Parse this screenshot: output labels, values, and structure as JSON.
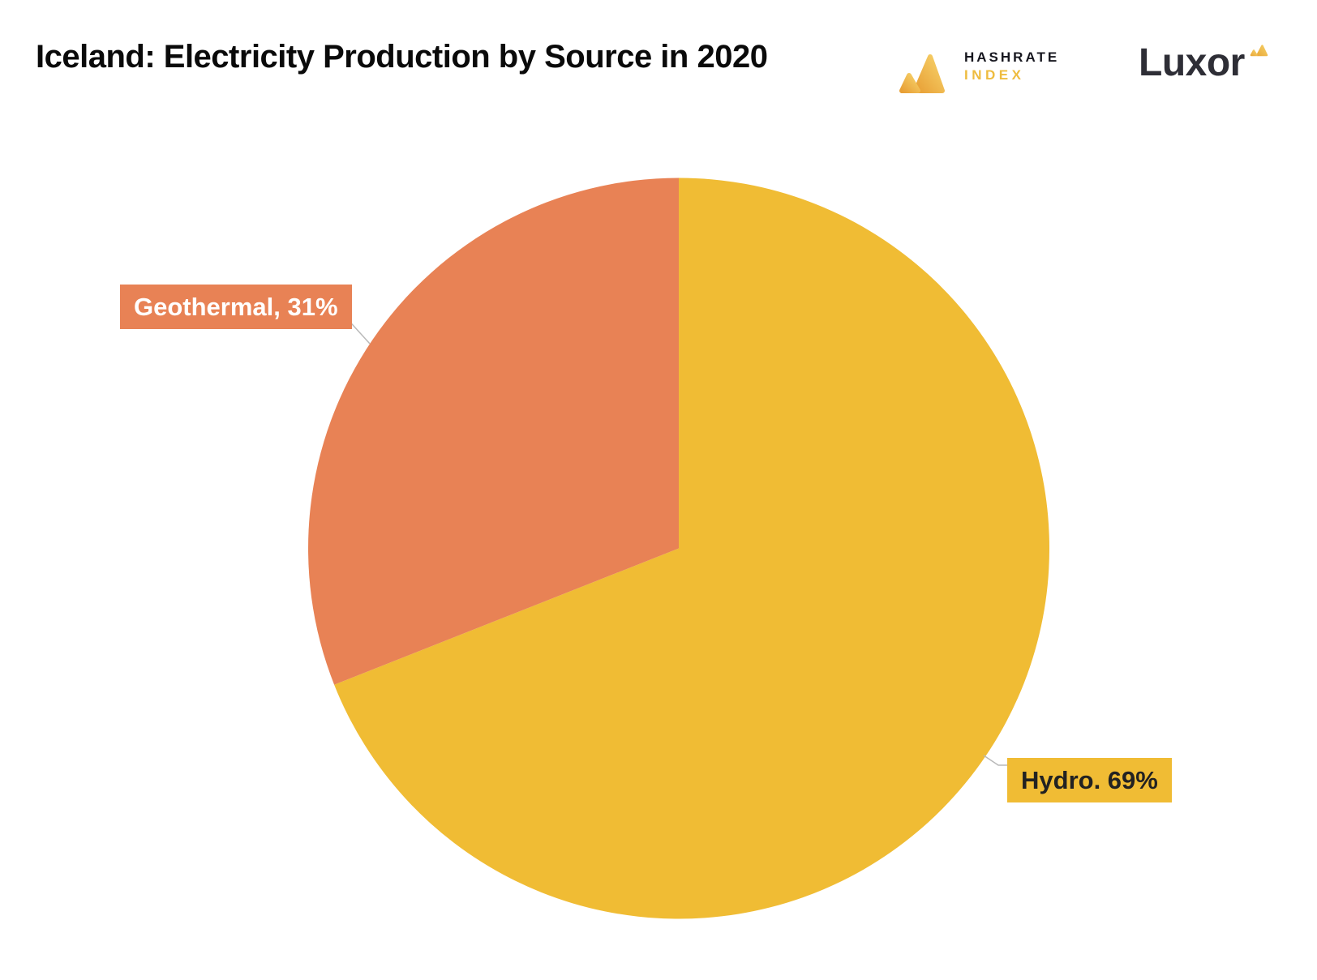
{
  "page": {
    "background_color": "#FFFFFF"
  },
  "header": {
    "title": "Iceland: Electricity Production by Source in 2020",
    "hashrate_index_logo": {
      "line1": "HASHRATE",
      "line2": "INDEX",
      "line1_color": "#17171F",
      "line2_color": "#EEBC3F"
    },
    "luxor_logo": {
      "text": "Luxor",
      "text_color": "#2E2E36",
      "accent_color": "#EEBC3F"
    }
  },
  "chart_data": {
    "type": "pie",
    "title": "Iceland: Electricity Production by Source in 2020",
    "unit": "%",
    "start_angle": "12-oclock",
    "direction": "clockwise",
    "legend_position": "none",
    "gridlines": false,
    "slices": [
      {
        "name": "Hydro",
        "value": 69,
        "color": "#F0BC34",
        "display_label": "Hydro. 69%",
        "label_text_color": "#222222"
      },
      {
        "name": "Geothermal",
        "value": 31,
        "color": "#E88255",
        "display_label": "Geothermal, 31%",
        "label_text_color": "#FFFFFF"
      }
    ],
    "callout_line_color": "#B9B9B9"
  }
}
